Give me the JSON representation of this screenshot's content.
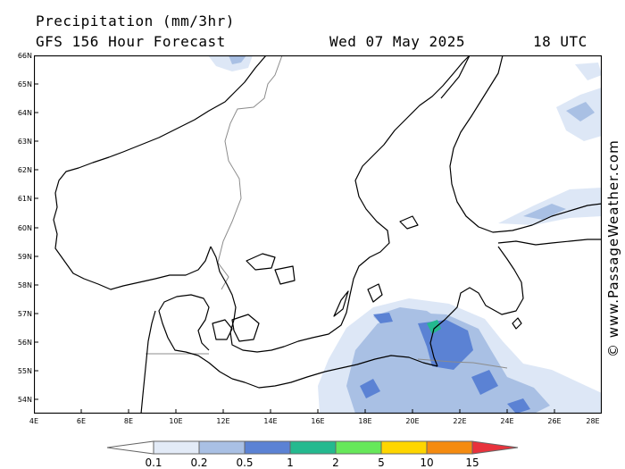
{
  "header": {
    "title": "Precipitation (mm/3hr)",
    "subtitle": "GFS 156 Hour Forecast",
    "date": "Wed 07 May 2025",
    "time": "18 UTC"
  },
  "axes": {
    "lat_labels": [
      "66N",
      "65N",
      "64N",
      "63N",
      "62N",
      "61N",
      "60N",
      "59N",
      "58N",
      "57N",
      "56N",
      "55N",
      "54N"
    ],
    "lon_labels": [
      "4E",
      "6E",
      "8E",
      "10E",
      "12E",
      "14E",
      "16E",
      "18E",
      "20E",
      "22E",
      "24E",
      "26E",
      "28E"
    ]
  },
  "watermark": "© www.PassageWeather.com",
  "legend": {
    "labels": [
      "0.1",
      "0.2",
      "0.5",
      "1",
      "2",
      "5",
      "10",
      "15"
    ],
    "colors": [
      "#ffffff",
      "#e3ebf7",
      "#a9c0e4",
      "#5b82d4",
      "#24b98f",
      "#66e85a",
      "#fed600",
      "#f58b10",
      "#e8323c"
    ]
  },
  "colors": {
    "precip_light": "#dde7f6",
    "precip_mid": "#a9c0e4",
    "precip_heavy": "#5b82d4",
    "precip_green": "#24b98f",
    "coast": "#000000",
    "border": "#8c8c8c"
  }
}
